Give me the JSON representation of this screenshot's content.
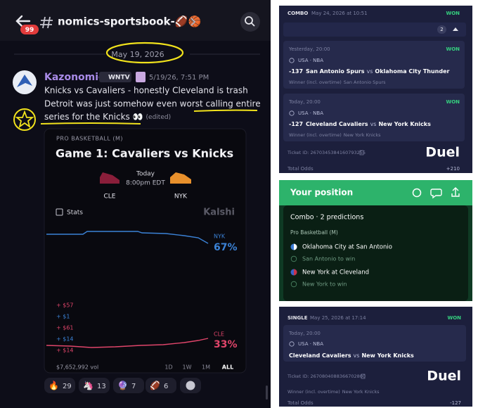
{
  "discord": {
    "badge": "99",
    "channel": "nomics-sportsbook-🏈🏀",
    "date_divider": "May 19, 2026",
    "message": {
      "author": "Kazonomics",
      "tag": "WNTV",
      "timestamp": "5/19/26, 7:51 PM",
      "lines": [
        "Knicks vs Cavaliers - honestly Cleveland is trash",
        "Detroit was just somehow even worst calling entire",
        "series for the Knicks 👀"
      ],
      "edited": "(edited)"
    },
    "embed": {
      "league": "PRO BASKETBALL (M)",
      "title": "Game 1: Cavaliers vs Knicks",
      "day": "Today",
      "time": "8:00pm EDT",
      "teams": [
        "CLE",
        "NYK"
      ],
      "stats": "Stats",
      "brand": "Kalshi",
      "outcomes": [
        {
          "name": "NYK",
          "percent": "67%",
          "color": "#3b82d6"
        },
        {
          "name": "CLE",
          "percent": "33%",
          "color": "#e0456a"
        }
      ],
      "trades": [
        {
          "label": "+ $57",
          "color": "#e0456a"
        },
        {
          "label": "+ $1",
          "color": "#3b82d6"
        },
        {
          "label": "+ $61",
          "color": "#e0456a"
        },
        {
          "label": "+ $14",
          "color": "#3b82d6"
        },
        {
          "label": "+ $14",
          "color": "#e0456a"
        }
      ],
      "volume": "$7,652,992 vol",
      "ranges": [
        "1D",
        "1W",
        "1M",
        "ALL"
      ]
    },
    "reactions": [
      {
        "emoji": "🔥",
        "count": 29
      },
      {
        "emoji": "🦄",
        "count": 13
      },
      {
        "emoji": "🔮",
        "count": 7
      },
      {
        "emoji": "🏈",
        "count": 6
      }
    ]
  },
  "combo_ticket": {
    "kind": "COMBO",
    "date": "May 24, 2026 at 10:51",
    "status": "WON",
    "count": 2,
    "legs": [
      {
        "when": "Yesterday, 20:00",
        "status": "WON",
        "league": "USA · NBA",
        "odds": "-137",
        "home": "San Antonio Spurs",
        "vs": "vs",
        "away": "Oklahoma City Thunder",
        "market": "Winner (incl. overtime)",
        "pick": "San Antonio Spurs"
      },
      {
        "when": "Today, 20:00",
        "status": "WON",
        "league": "USA · NBA",
        "odds": "-127",
        "home": "Cleveland Cavaliers",
        "vs": "vs",
        "away": "New York Knicks",
        "market": "Winner (incl. overtime)",
        "pick": "New York Knicks"
      }
    ],
    "ticket_id": "Ticket ID: 2670345384160793255",
    "brand": "Duel",
    "total_label": "Total Odds",
    "total": "+210"
  },
  "position": {
    "title": "Your position",
    "summary": "Combo · 2 predictions",
    "league": "Pro Basketball (M)",
    "items": [
      {
        "game": "Oklahoma City at San Antonio",
        "pick": "San Antonio to win"
      },
      {
        "game": "New York at Cleveland",
        "pick": "New York to win"
      }
    ]
  },
  "single_ticket": {
    "kind": "SINGLE",
    "date": "May 25, 2026 at 17:14",
    "status": "WON",
    "leg": {
      "when": "Today, 20:00",
      "league": "USA · NBA",
      "home": "Cleveland Cavaliers",
      "vs": "vs",
      "away": "New York Knicks"
    },
    "ticket_id": "Ticket ID: 2670804088366702800",
    "brand": "Duel",
    "market": "Winner (incl. overtime)",
    "pick": "New York Knicks",
    "total_label": "Total Odds",
    "total": "-127"
  }
}
